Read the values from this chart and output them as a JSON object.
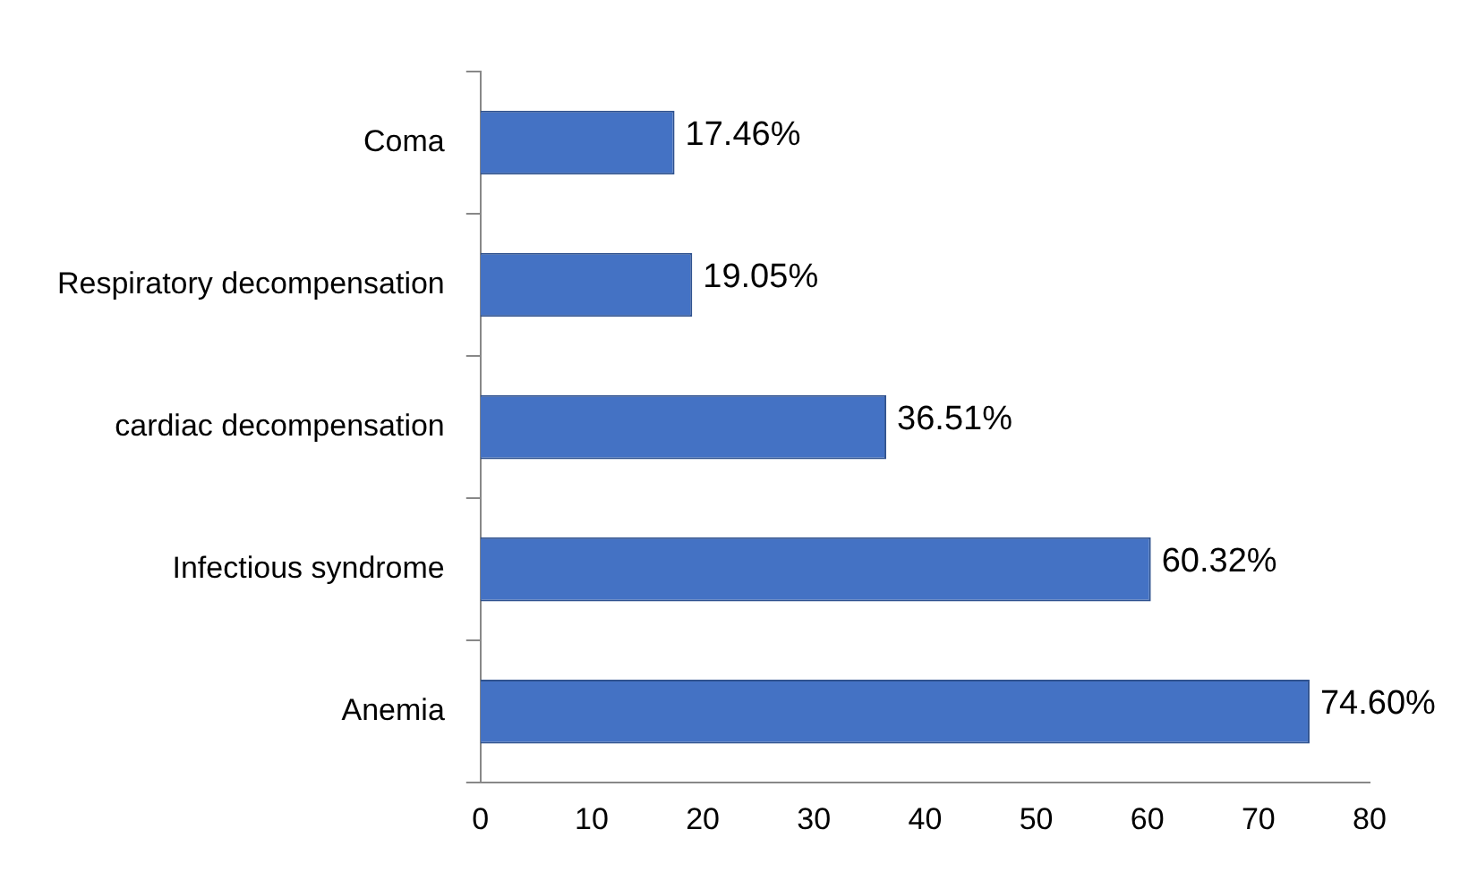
{
  "chart_data": {
    "type": "bar",
    "orientation": "horizontal",
    "categories": [
      "Coma",
      "Respiratory decompensation",
      "cardiac decompensation",
      "Infectious syndrome",
      "Anemia"
    ],
    "values": [
      17.46,
      19.05,
      36.51,
      60.32,
      74.6
    ],
    "value_labels": [
      "17.46%",
      "19.05%",
      "36.51%",
      "60.32%",
      "74.60%"
    ],
    "color": "#4472c4",
    "xlim": [
      0,
      80
    ],
    "xticks": [
      0,
      10,
      20,
      30,
      40,
      50,
      60,
      70,
      80
    ],
    "grid": false,
    "legend": false
  }
}
